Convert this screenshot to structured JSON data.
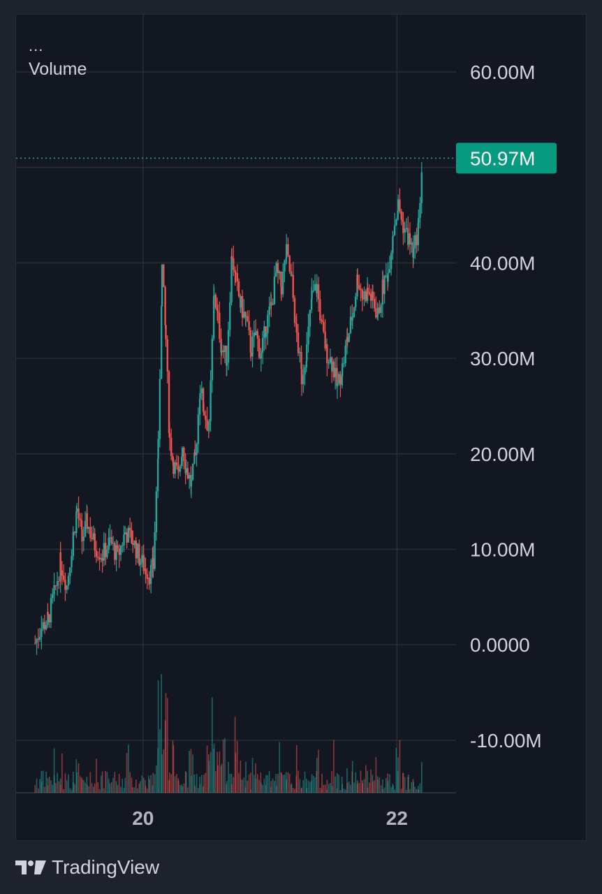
{
  "legend": {
    "more": "...",
    "name": "Volume"
  },
  "brand": {
    "name": "TradingView"
  },
  "colors": {
    "up": "#26a69a",
    "down": "#ef5350",
    "background": "#131722",
    "grid": "#2a2e39",
    "text": "#d1d4dc",
    "last_price_bg": "#089981"
  },
  "chart_data": {
    "type": "candlestick",
    "title": "Volume",
    "xlabel": "",
    "ylabel": "",
    "ylim": [
      -15.5,
      66
    ],
    "y_ticks": [
      {
        "value": 60,
        "label": "60.00M"
      },
      {
        "value": 40,
        "label": "40.00M"
      },
      {
        "value": 30,
        "label": "30.00M"
      },
      {
        "value": 20,
        "label": "20.00M"
      },
      {
        "value": 10,
        "label": "10.00M"
      },
      {
        "value": 0,
        "label": "0.0000"
      },
      {
        "value": -10,
        "label": "-10.00M"
      }
    ],
    "x_range": [
      19.0,
      23.5
    ],
    "x_ticks": [
      {
        "value": 20,
        "label": "20"
      },
      {
        "value": 22,
        "label": "22"
      }
    ],
    "last_value": {
      "value": 50.97,
      "label": "50.97M"
    },
    "grid": true,
    "price_path": [
      [
        19.15,
        0.2
      ],
      [
        19.2,
        1.8
      ],
      [
        19.25,
        2.6
      ],
      [
        19.3,
        5.2
      ],
      [
        19.35,
        8.6
      ],
      [
        19.4,
        6.2
      ],
      [
        19.45,
        11.5
      ],
      [
        19.48,
        14.2
      ],
      [
        19.52,
        11.0
      ],
      [
        19.56,
        12.8
      ],
      [
        19.62,
        10.4
      ],
      [
        19.68,
        9.4
      ],
      [
        19.74,
        10.8
      ],
      [
        19.8,
        9.2
      ],
      [
        19.86,
        11.8
      ],
      [
        19.92,
        10.9
      ],
      [
        19.98,
        8.8
      ],
      [
        20.02,
        8.0
      ],
      [
        20.05,
        7.4
      ],
      [
        20.08,
        8.2
      ],
      [
        20.12,
        20.5
      ],
      [
        20.15,
        39.5
      ],
      [
        20.18,
        32.0
      ],
      [
        20.21,
        21.5
      ],
      [
        20.24,
        19.0
      ],
      [
        20.28,
        17.5
      ],
      [
        20.31,
        21.0
      ],
      [
        20.34,
        18.5
      ],
      [
        20.38,
        16.8
      ],
      [
        20.41,
        19.5
      ],
      [
        20.45,
        27.0
      ],
      [
        20.48,
        24.5
      ],
      [
        20.52,
        22.5
      ],
      [
        20.56,
        37.0
      ],
      [
        20.59,
        34.0
      ],
      [
        20.62,
        31.0
      ],
      [
        20.66,
        30.0
      ],
      [
        20.7,
        41.0
      ],
      [
        20.73,
        38.0
      ],
      [
        20.77,
        35.5
      ],
      [
        20.81,
        34.0
      ],
      [
        20.85,
        31.0
      ],
      [
        20.89,
        32.5
      ],
      [
        20.93,
        30.2
      ],
      [
        20.97,
        33.5
      ],
      [
        21.01,
        35.5
      ],
      [
        21.05,
        39.0
      ],
      [
        21.09,
        37.5
      ],
      [
        21.13,
        41.0
      ],
      [
        21.17,
        38.0
      ],
      [
        21.21,
        32.5
      ],
      [
        21.25,
        28.0
      ],
      [
        21.29,
        31.0
      ],
      [
        21.33,
        36.5
      ],
      [
        21.37,
        37.5
      ],
      [
        21.41,
        33.0
      ],
      [
        21.45,
        30.5
      ],
      [
        21.49,
        29.5
      ],
      [
        21.53,
        27.0
      ],
      [
        21.57,
        29.0
      ],
      [
        21.61,
        32.0
      ],
      [
        21.65,
        34.5
      ],
      [
        21.69,
        38.5
      ],
      [
        21.73,
        36.5
      ],
      [
        21.77,
        37.0
      ],
      [
        21.81,
        36.0
      ],
      [
        21.85,
        34.5
      ],
      [
        21.89,
        37.5
      ],
      [
        21.93,
        39.0
      ],
      [
        21.97,
        43.5
      ],
      [
        22.01,
        46.0
      ],
      [
        22.05,
        44.0
      ],
      [
        22.09,
        42.5
      ],
      [
        22.13,
        41.0
      ],
      [
        22.17,
        44.0
      ],
      [
        22.2,
        50.97
      ]
    ]
  }
}
